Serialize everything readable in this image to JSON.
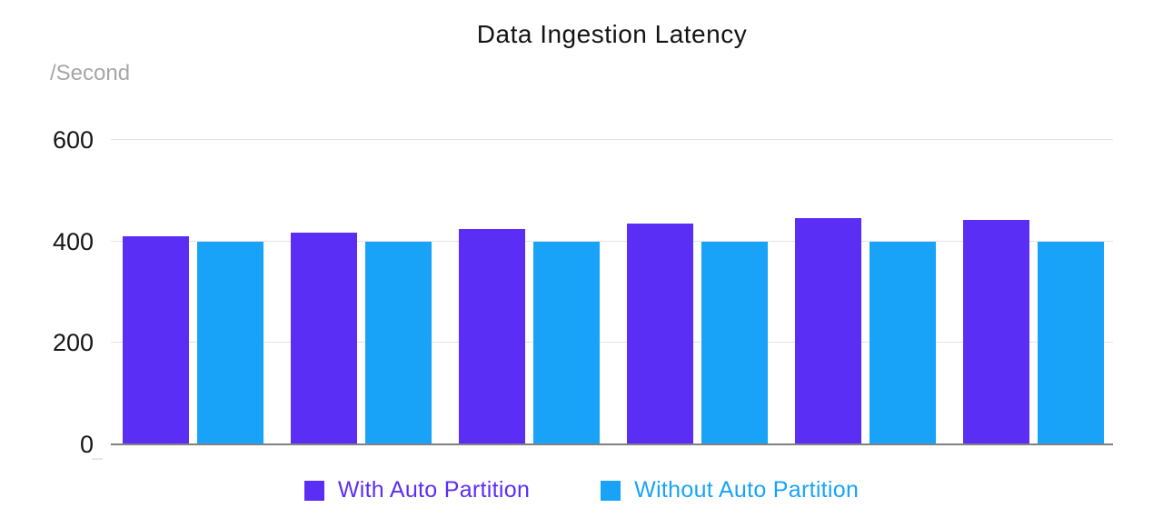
{
  "chart_data": {
    "type": "bar",
    "title": "Data Ingestion Latency",
    "unit_label": "/Second",
    "xlabel": "",
    "ylabel": "/Second",
    "ylim": [
      0,
      600
    ],
    "yticks": [
      0,
      200,
      400,
      600
    ],
    "grid": true,
    "legend_position": "bottom",
    "group_count": 6,
    "categories": [
      "",
      "",
      "",
      "",
      "",
      ""
    ],
    "series": [
      {
        "name": "With Auto Partition",
        "color": "#5B2EF5",
        "values": [
          410,
          418,
          425,
          435,
          446,
          443
        ]
      },
      {
        "name": "Without Auto Partition",
        "color": "#18A3F8",
        "values": [
          400,
          400,
          400,
          400,
          400,
          400
        ]
      }
    ],
    "colors": {
      "background": "#ffffff",
      "title_text": "#141414",
      "unit_text": "#a6a6a6",
      "tick_text": "#161616",
      "gridline": "#e3e3e3",
      "baseline": "#808080"
    }
  }
}
